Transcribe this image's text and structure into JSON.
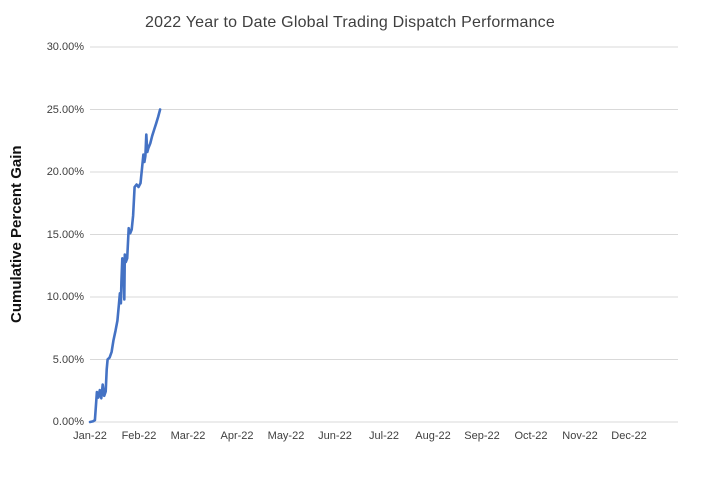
{
  "chart_data": {
    "type": "line",
    "title": "2022 Year to Date Global Trading Dispatch Performance",
    "ylabel": "Cumulative Percent Gain",
    "xlabel": "",
    "legend": "none",
    "grid": "horizontal",
    "line_color": "#4472C4",
    "grid_color": "#D9D9D9",
    "ylim": [
      0,
      30
    ],
    "xlim_months": [
      0,
      12
    ],
    "x_tick_labels": [
      "Jan-22",
      "Feb-22",
      "Mar-22",
      "Apr-22",
      "May-22",
      "Jun-22",
      "Jul-22",
      "Aug-22",
      "Sep-22",
      "Oct-22",
      "Nov-22",
      "Dec-22"
    ],
    "y_tick_values": [
      0,
      5,
      10,
      15,
      20,
      25,
      30
    ],
    "y_tick_labels": [
      "0.00%",
      "5.00%",
      "10.00%",
      "15.00%",
      "20.00%",
      "25.00%",
      "30.00%"
    ],
    "series": [
      {
        "name": "Cumulative Percent Gain",
        "x_unit": "months-from-jan-2022",
        "points": [
          [
            0.0,
            0.0
          ],
          [
            0.06,
            0.05
          ],
          [
            0.1,
            0.15
          ],
          [
            0.14,
            2.4
          ],
          [
            0.17,
            1.95
          ],
          [
            0.2,
            2.55
          ],
          [
            0.23,
            1.9
          ],
          [
            0.26,
            3.0
          ],
          [
            0.29,
            2.1
          ],
          [
            0.32,
            2.45
          ],
          [
            0.34,
            4.2
          ],
          [
            0.36,
            5.0
          ],
          [
            0.4,
            5.15
          ],
          [
            0.44,
            5.6
          ],
          [
            0.48,
            6.55
          ],
          [
            0.52,
            7.3
          ],
          [
            0.56,
            8.1
          ],
          [
            0.59,
            9.4
          ],
          [
            0.61,
            10.3
          ],
          [
            0.63,
            9.5
          ],
          [
            0.64,
            11.2
          ],
          [
            0.66,
            13.1
          ],
          [
            0.68,
            12.6
          ],
          [
            0.7,
            9.8
          ],
          [
            0.71,
            13.4
          ],
          [
            0.73,
            12.8
          ],
          [
            0.76,
            13.1
          ],
          [
            0.79,
            15.5
          ],
          [
            0.82,
            15.1
          ],
          [
            0.85,
            15.4
          ],
          [
            0.88,
            16.5
          ],
          [
            0.91,
            18.8
          ],
          [
            0.95,
            19.0
          ],
          [
            0.99,
            18.8
          ],
          [
            1.03,
            19.1
          ],
          [
            1.06,
            20.2
          ],
          [
            1.09,
            21.4
          ],
          [
            1.11,
            20.8
          ],
          [
            1.13,
            21.3
          ],
          [
            1.15,
            23.0
          ],
          [
            1.17,
            21.6
          ],
          [
            1.19,
            21.9
          ],
          [
            1.23,
            22.3
          ],
          [
            1.27,
            22.9
          ],
          [
            1.31,
            23.4
          ],
          [
            1.35,
            23.9
          ],
          [
            1.39,
            24.4
          ],
          [
            1.43,
            25.0
          ]
        ]
      }
    ]
  }
}
